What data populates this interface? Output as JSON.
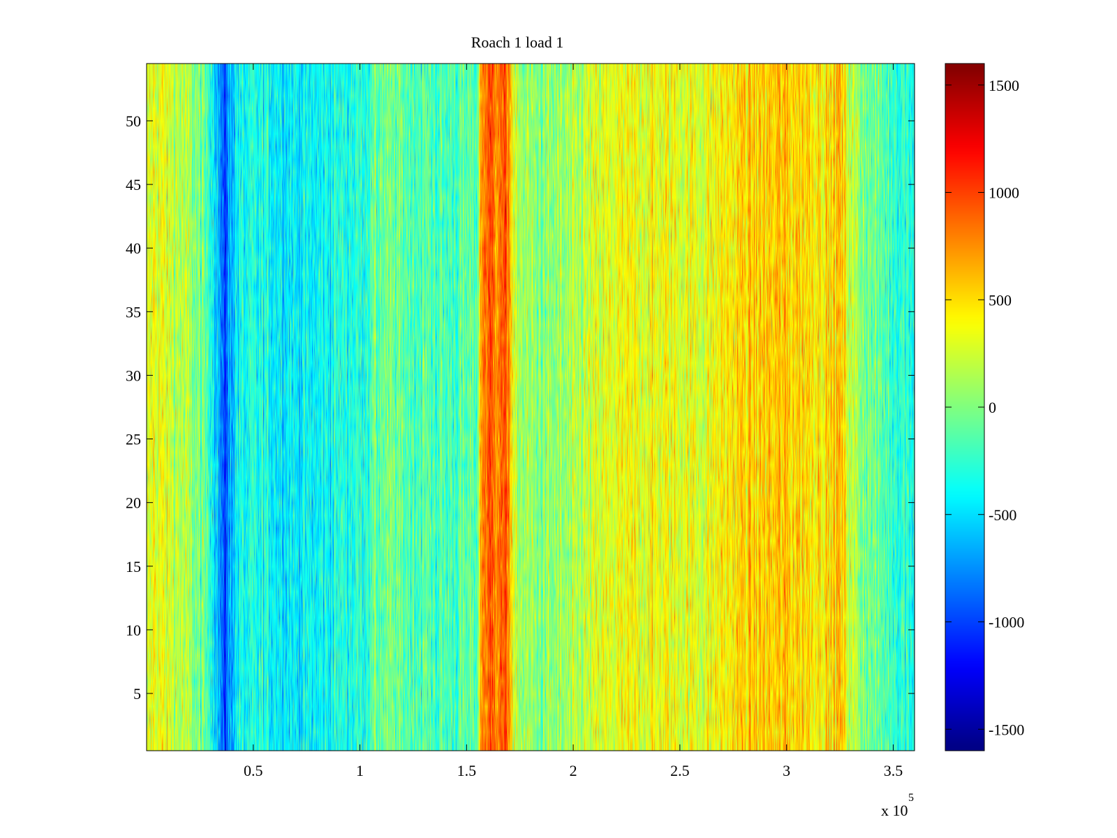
{
  "chart_data": {
    "type": "heatmap",
    "title": "Roach 1 load 1",
    "xlabel": "",
    "ylabel": "",
    "x_exponent_label": "x 10",
    "x_exponent_power": "5",
    "xlim": [
      0,
      3.6
    ],
    "ylim": [
      0.5,
      54.5
    ],
    "x_ticks": [
      0.5,
      1,
      1.5,
      2,
      2.5,
      3,
      3.5
    ],
    "x_tick_labels": [
      "0.5",
      "1",
      "1.5",
      "2",
      "2.5",
      "3",
      "3.5"
    ],
    "y_ticks": [
      5,
      10,
      15,
      20,
      25,
      30,
      35,
      40,
      45,
      50
    ],
    "y_tick_labels": [
      "5",
      "10",
      "15",
      "20",
      "25",
      "30",
      "35",
      "40",
      "45",
      "50"
    ],
    "rows": 54,
    "colormap": "jet",
    "clim": [
      -1600,
      1600
    ],
    "colorbar_ticks": [
      1500,
      1000,
      500,
      0,
      -500,
      -1000,
      -1500
    ],
    "colorbar_tick_labels": [
      "1500",
      "1000",
      "500",
      "0",
      "-500",
      "-1000",
      "-1500"
    ],
    "column_profile": {
      "x": [
        0.0,
        0.03,
        0.08,
        0.12,
        0.2,
        0.3,
        0.34,
        0.36,
        0.38,
        0.42,
        0.55,
        0.7,
        0.8,
        0.9,
        1.0,
        1.1,
        1.25,
        1.4,
        1.55,
        1.57,
        1.6,
        1.7,
        1.72,
        1.8,
        1.9,
        2.0,
        2.05,
        2.2,
        2.35,
        2.5,
        2.6,
        2.7,
        2.8,
        3.0,
        3.2,
        3.25,
        3.3,
        3.4,
        3.5,
        3.6
      ],
      "values": [
        150,
        380,
        300,
        240,
        100,
        -200,
        -650,
        -1050,
        -800,
        -400,
        -350,
        -430,
        -420,
        -310,
        -280,
        -50,
        -120,
        -180,
        -120,
        800,
        900,
        860,
        180,
        40,
        20,
        80,
        200,
        320,
        360,
        350,
        300,
        420,
        520,
        560,
        480,
        600,
        200,
        -60,
        -200,
        -300
      ]
    },
    "noise_amplitude": 450
  }
}
